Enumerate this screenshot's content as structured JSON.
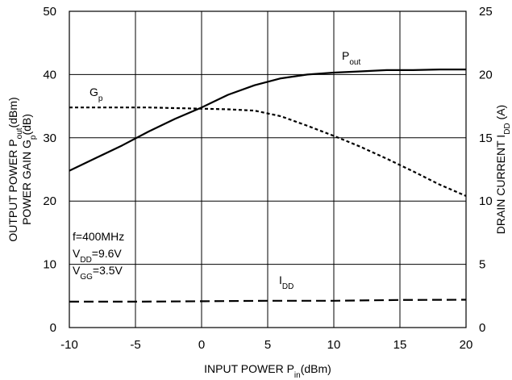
{
  "chart_data": {
    "type": "line",
    "xlabel": {
      "main": "INPUT POWER P",
      "sub": "in",
      "tail": "(dBm)"
    },
    "ylabel_left": {
      "line1": {
        "main": "OUTPUT POWER P",
        "sub": "out",
        "tail": "(dBm)"
      },
      "line2": {
        "main": "POWER GAIN G",
        "sub": "p",
        "tail": "(dB)"
      }
    },
    "ylabel_right": {
      "main": "DRAIN CURRENT I",
      "sub": "DD",
      "tail": " (A)"
    },
    "xlim": [
      -10,
      20
    ],
    "ylim_left": [
      0,
      50
    ],
    "ylim_right": [
      0,
      25
    ],
    "x_ticks": [
      "-10",
      "-5",
      "0",
      "5",
      "10",
      "15",
      "20"
    ],
    "y_left_ticks": [
      "0",
      "10",
      "20",
      "30",
      "40",
      "50"
    ],
    "y_right_ticks": [
      "0",
      "5",
      "10",
      "15",
      "20",
      "25"
    ],
    "grid": true,
    "conditions": [
      {
        "main": "f=400MHz",
        "sub": "",
        "tail": ""
      },
      {
        "main": "V",
        "sub": "DD",
        "tail": "=9.6V"
      },
      {
        "main": "V",
        "sub": "GG",
        "tail": "=3.5V"
      }
    ],
    "series": [
      {
        "name": "Pout",
        "label": {
          "main": "P",
          "sub": "out"
        },
        "axis": "left",
        "style": "solid",
        "x": [
          -10,
          -8,
          -6,
          -4,
          -2,
          0,
          2,
          4,
          6,
          8,
          10,
          12,
          14,
          16,
          18,
          20
        ],
        "y": [
          24.8,
          26.8,
          28.8,
          31.0,
          33.0,
          34.8,
          36.8,
          38.3,
          39.4,
          40.0,
          40.3,
          40.5,
          40.7,
          40.7,
          40.8,
          40.8
        ]
      },
      {
        "name": "Gp",
        "label": {
          "main": "G",
          "sub": "p"
        },
        "axis": "left",
        "style": "dotted",
        "x": [
          -10,
          -8,
          -6,
          -4,
          -2,
          0,
          2,
          4,
          6,
          8,
          10,
          12,
          14,
          16,
          18,
          20
        ],
        "y": [
          34.8,
          34.8,
          34.8,
          34.8,
          34.7,
          34.6,
          34.5,
          34.3,
          33.4,
          31.9,
          30.3,
          28.6,
          26.7,
          24.7,
          22.6,
          20.8
        ]
      },
      {
        "name": "IDD",
        "label": {
          "main": "I",
          "sub": "DD"
        },
        "axis": "right",
        "style": "dashed",
        "x": [
          -10,
          -5,
          0,
          5,
          10,
          15,
          20
        ],
        "y": [
          2.05,
          2.05,
          2.08,
          2.12,
          2.12,
          2.18,
          2.2
        ]
      }
    ]
  }
}
